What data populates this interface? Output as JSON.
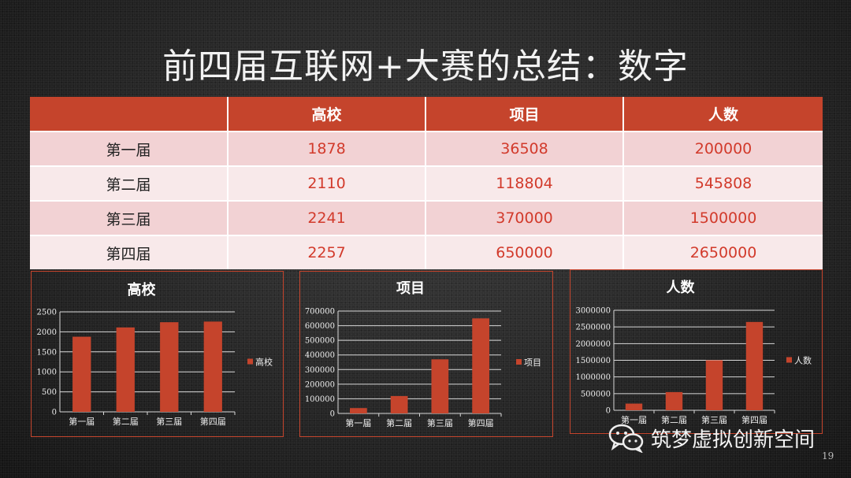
{
  "title": "前四届互联网+大赛的总结：数字",
  "table": {
    "headers": [
      "",
      "高校",
      "项目",
      "人数"
    ],
    "rows": [
      {
        "label": "第一届",
        "values": [
          "1878",
          "36508",
          "200000"
        ]
      },
      {
        "label": "第二届",
        "values": [
          "2110",
          "118804",
          "545808"
        ]
      },
      {
        "label": "第三届",
        "values": [
          "2241",
          "370000",
          "1500000"
        ]
      },
      {
        "label": "第四届",
        "values": [
          "2257",
          "650000",
          "2650000"
        ]
      }
    ]
  },
  "chart_data": [
    {
      "type": "bar",
      "title": "高校",
      "categories": [
        "第一届",
        "第二届",
        "第三届",
        "第四届"
      ],
      "series": [
        {
          "name": "高校",
          "values": [
            1878,
            2110,
            2241,
            2257
          ]
        }
      ],
      "ylim": [
        0,
        2500
      ],
      "yticks": [
        "0",
        "500",
        "1000",
        "1500",
        "2000",
        "2500"
      ],
      "grid": true,
      "legend": "right",
      "color": "#c5442c"
    },
    {
      "type": "bar",
      "title": "项目",
      "categories": [
        "第一届",
        "第二届",
        "第三届",
        "第四届"
      ],
      "series": [
        {
          "name": "项目",
          "values": [
            36508,
            118804,
            370000,
            650000
          ]
        }
      ],
      "ylim": [
        0,
        700000
      ],
      "yticks": [
        "0",
        "100000",
        "200000",
        "300000",
        "400000",
        "500000",
        "600000",
        "700000"
      ],
      "grid": true,
      "legend": "right",
      "color": "#c5442c"
    },
    {
      "type": "bar",
      "title": "人数",
      "categories": [
        "第一届",
        "第二届",
        "第三届",
        "第四届"
      ],
      "series": [
        {
          "name": "人数",
          "values": [
            200000,
            545808,
            1500000,
            2650000
          ]
        }
      ],
      "ylim": [
        0,
        3000000
      ],
      "yticks": [
        "0",
        "500000",
        "1000000",
        "1500000",
        "2000000",
        "2500000",
        "3000000"
      ],
      "grid": true,
      "legend": "right",
      "color": "#c5442c"
    }
  ],
  "watermark": {
    "icon": "wechat-icon",
    "text": "筑梦虚拟创新空间"
  },
  "page_number": "19"
}
